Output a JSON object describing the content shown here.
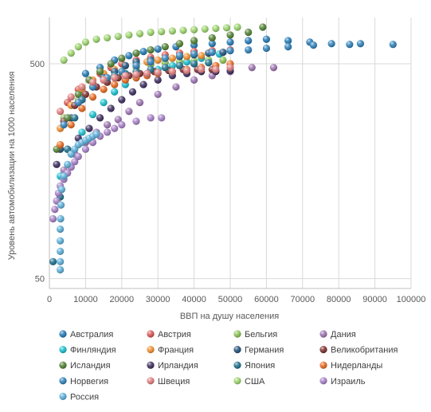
{
  "chart_data": {
    "type": "scatter",
    "xlabel": "ВВП на душу населения",
    "ylabel": "Уровень автомобилизации на 1000 населения",
    "x_ticks": [
      "0",
      "10000",
      "20000",
      "30000",
      "40000",
      "50000",
      "60000",
      "70000",
      "80000",
      "90000",
      "100000"
    ],
    "y_ticks": [
      "50",
      "500"
    ],
    "xlim": [
      0,
      100000
    ],
    "ylim": [
      45,
      820
    ],
    "yscale": "log",
    "grid": "major gridlines on both axes",
    "legend_position": "bottom",
    "series": [
      {
        "name": "Австралия",
        "color": "#1f77b4",
        "x": [
          10000,
          14000,
          18000,
          22000,
          26000,
          30000,
          35000,
          40000,
          45000,
          50000,
          55000,
          60000,
          66000,
          72000
        ],
        "y": [
          450,
          480,
          520,
          545,
          570,
          585,
          600,
          610,
          620,
          630,
          640,
          650,
          640,
          630
        ]
      },
      {
        "name": "Австрия",
        "color": "#d9534f",
        "x": [
          5000,
          8000,
          11000,
          14000,
          17000,
          20000,
          24000,
          28000,
          32000,
          36000,
          40000,
          45000,
          50000
        ],
        "y": [
          330,
          380,
          420,
          450,
          480,
          500,
          520,
          535,
          550,
          560,
          570,
          575,
          580
        ]
      },
      {
        "name": "Бельгия",
        "color": "#8cc152",
        "x": [
          4000,
          8000,
          12000,
          16000,
          20000,
          24000,
          28000,
          32000,
          36000,
          40000,
          44000,
          48000
        ],
        "y": [
          280,
          340,
          390,
          430,
          460,
          480,
          495,
          505,
          510,
          515,
          520,
          520
        ]
      },
      {
        "name": "Дания",
        "color": "#9b72b0",
        "x": [
          4000,
          7000,
          10000,
          13000,
          16000,
          19000,
          22000,
          25000,
          30000,
          35000,
          40000,
          45000,
          50000,
          56000,
          62000
        ],
        "y": [
          160,
          190,
          215,
          240,
          260,
          275,
          300,
          330,
          360,
          390,
          420,
          440,
          460,
          480,
          480
        ]
      },
      {
        "name": "Финляндия",
        "color": "#17becf",
        "x": [
          3000,
          6000,
          9000,
          12000,
          15000,
          18000,
          21000,
          24000,
          27000,
          30000,
          34000,
          38000,
          42000,
          47000
        ],
        "y": [
          150,
          190,
          240,
          290,
          330,
          370,
          400,
          430,
          450,
          470,
          490,
          510,
          530,
          555
        ]
      },
      {
        "name": "Франция",
        "color": "#f28e2b",
        "x": [
          3000,
          6000,
          9000,
          12000,
          15000,
          18000,
          21000,
          24000,
          27000,
          30000,
          34000,
          38000,
          42000
        ],
        "y": [
          250,
          320,
          380,
          420,
          450,
          470,
          490,
          500,
          510,
          520,
          530,
          540,
          545
        ]
      },
      {
        "name": "Германия",
        "color": "#1f4e79",
        "x": [
          3000,
          6000,
          9000,
          12000,
          15000,
          18000,
          21000,
          24000,
          28000,
          32000,
          36000,
          40000,
          44000,
          48000
        ],
        "y": [
          200,
          280,
          340,
          390,
          430,
          460,
          490,
          510,
          520,
          530,
          540,
          550,
          560,
          565
        ]
      },
      {
        "name": "Великобритания",
        "color": "#7b2b2b",
        "x": [
          4000,
          7000,
          10000,
          13000,
          16000,
          19000,
          22000,
          25000,
          29000,
          33000,
          37000,
          41000,
          45000
        ],
        "y": [
          270,
          320,
          360,
          390,
          410,
          430,
          440,
          450,
          460,
          465,
          470,
          470,
          470
        ]
      },
      {
        "name": "Исландия",
        "color": "#4f7f2f",
        "x": [
          2000,
          5000,
          8000,
          11000,
          14000,
          17000,
          20000,
          24000,
          28000,
          32000,
          36000,
          40000,
          45000,
          50000,
          55000,
          59000
        ],
        "y": [
          200,
          280,
          360,
          420,
          460,
          500,
          530,
          560,
          580,
          600,
          620,
          640,
          660,
          680,
          700,
          740
        ]
      },
      {
        "name": "Ирландия",
        "color": "#3b2a5c",
        "x": [
          2000,
          5000,
          8000,
          11000,
          14000,
          17000,
          20000,
          23000,
          26000,
          30000,
          34000,
          38000,
          42000,
          46000,
          50000
        ],
        "y": [
          170,
          200,
          225,
          250,
          280,
          310,
          340,
          370,
          400,
          420,
          440,
          450,
          460,
          460,
          465
        ]
      },
      {
        "name": "Япония",
        "color": "#1a6e8a",
        "x": [
          1000,
          3000,
          5000,
          7000,
          9000,
          12000,
          15000,
          18000,
          21000,
          24000,
          28000,
          32000,
          36000,
          40000,
          44000
        ],
        "y": [
          60,
          120,
          200,
          280,
          340,
          390,
          420,
          440,
          450,
          460,
          470,
          480,
          490,
          500,
          505
        ]
      },
      {
        "name": "Нидерланды",
        "color": "#e8681c",
        "x": [
          3000,
          6000,
          9000,
          12000,
          15000,
          18000,
          21000,
          24000,
          27000,
          30000,
          34000,
          38000,
          42000,
          46000,
          50000
        ],
        "y": [
          210,
          260,
          310,
          350,
          380,
          400,
          420,
          430,
          440,
          450,
          460,
          470,
          480,
          490,
          500
        ]
      },
      {
        "name": "Норвегия",
        "color": "#2c7fb8",
        "x": [
          4000,
          8000,
          12000,
          16000,
          20000,
          24000,
          28000,
          32000,
          36000,
          40000,
          45000,
          50000,
          55000,
          60000,
          66000,
          73000,
          78000,
          83000,
          86000,
          95000
        ],
        "y": [
          260,
          330,
          390,
          430,
          460,
          490,
          510,
          530,
          545,
          555,
          565,
          575,
          580,
          590,
          600,
          610,
          620,
          615,
          620,
          615
        ]
      },
      {
        "name": "Швеция",
        "color": "#e07b7b",
        "x": [
          3000,
          6000,
          9000,
          12000,
          15000,
          18000,
          21000,
          24000,
          27000,
          30000,
          34000,
          38000,
          42000,
          46000,
          50000
        ],
        "y": [
          300,
          350,
          390,
          410,
          420,
          430,
          440,
          445,
          450,
          455,
          460,
          465,
          470,
          470,
          480
        ]
      },
      {
        "name": "США",
        "color": "#9bd36b",
        "x": [
          4000,
          6000,
          8000,
          10000,
          13000,
          16000,
          19000,
          22000,
          25000,
          28000,
          31000,
          34000,
          37000,
          40000,
          43000,
          46000,
          49000,
          52000
        ],
        "y": [
          520,
          560,
          600,
          630,
          650,
          660,
          670,
          680,
          690,
          700,
          705,
          710,
          715,
          720,
          725,
          730,
          735,
          740
        ]
      },
      {
        "name": "Израиль",
        "color": "#a57ec6",
        "x": [
          1000,
          1500,
          2000,
          2500,
          3000,
          4000,
          5000,
          6000,
          7000,
          8000,
          10000,
          12000,
          14000,
          16000,
          18000,
          20000,
          24000,
          28000,
          31000
        ],
        "y": [
          95,
          105,
          115,
          125,
          135,
          145,
          155,
          165,
          175,
          185,
          200,
          215,
          230,
          240,
          250,
          260,
          270,
          280,
          280
        ]
      },
      {
        "name": "Россия",
        "color": "#5aaed8",
        "x": [
          3000,
          3000,
          3000,
          3000,
          3000,
          3100,
          3200,
          3400,
          4000,
          5000,
          6000,
          7000,
          8000,
          9000,
          10000,
          11000,
          12000,
          13000
        ],
        "y": [
          55,
          60,
          67,
          75,
          85,
          95,
          110,
          130,
          150,
          170,
          190,
          200,
          210,
          215,
          220,
          225,
          230,
          235
        ]
      }
    ]
  }
}
